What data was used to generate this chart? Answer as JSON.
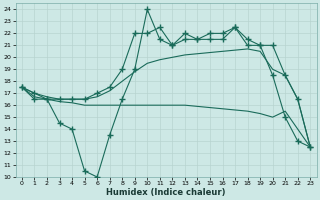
{
  "xlabel": "Humidex (Indice chaleur)",
  "bg_color": "#cde8e5",
  "line_color": "#1a6b5a",
  "grid_color": "#b8d4d0",
  "xlim": [
    -0.5,
    23.5
  ],
  "ylim": [
    10,
    24.5
  ],
  "xticks": [
    0,
    1,
    2,
    3,
    4,
    5,
    6,
    7,
    8,
    9,
    10,
    11,
    12,
    13,
    14,
    15,
    16,
    17,
    18,
    19,
    20,
    21,
    22,
    23
  ],
  "yticks": [
    10,
    11,
    12,
    13,
    14,
    15,
    16,
    17,
    18,
    19,
    20,
    21,
    22,
    23,
    24
  ],
  "line_upper_smooth_x": [
    0,
    1,
    2,
    3,
    4,
    5,
    6,
    7,
    8,
    9,
    10,
    11,
    12,
    13,
    14,
    15,
    16,
    17,
    18,
    19,
    20,
    21,
    22,
    23
  ],
  "line_upper_smooth_y": [
    17.5,
    17.0,
    16.7,
    16.5,
    16.5,
    16.5,
    16.7,
    17.2,
    18.0,
    18.8,
    19.5,
    19.8,
    20.0,
    20.2,
    20.3,
    20.4,
    20.5,
    20.6,
    20.7,
    20.5,
    19.0,
    18.5,
    16.5,
    12.5
  ],
  "line_lower_smooth_x": [
    0,
    1,
    2,
    3,
    4,
    5,
    6,
    7,
    8,
    9,
    10,
    11,
    12,
    13,
    14,
    15,
    16,
    17,
    18,
    19,
    20,
    21,
    22,
    23
  ],
  "line_lower_smooth_y": [
    17.5,
    16.7,
    16.5,
    16.3,
    16.2,
    16.0,
    16.0,
    16.0,
    16.0,
    16.0,
    16.0,
    16.0,
    16.0,
    16.0,
    15.9,
    15.8,
    15.7,
    15.6,
    15.5,
    15.3,
    15.0,
    15.5,
    14.0,
    12.5
  ],
  "line_upper_marker_x": [
    0,
    1,
    2,
    3,
    4,
    5,
    6,
    7,
    8,
    9,
    10,
    11,
    12,
    13,
    14,
    15,
    16,
    17,
    18,
    19,
    20,
    21,
    22,
    23
  ],
  "line_upper_marker_y": [
    17.5,
    17.0,
    16.5,
    16.5,
    16.5,
    16.5,
    17.0,
    17.5,
    19.0,
    22.0,
    22.0,
    22.5,
    21.0,
    21.5,
    21.5,
    21.5,
    21.5,
    22.5,
    21.5,
    21.0,
    21.0,
    18.5,
    16.5,
    12.5
  ],
  "line_lower_marker_x": [
    0,
    1,
    2,
    3,
    4,
    5,
    6,
    7,
    8,
    9,
    10,
    11,
    12,
    13,
    14,
    15,
    16,
    17,
    18,
    19,
    20,
    21,
    22,
    23
  ],
  "line_lower_marker_y": [
    17.5,
    16.5,
    16.5,
    14.5,
    14.0,
    10.5,
    10.0,
    13.5,
    16.5,
    19.0,
    24.0,
    21.5,
    21.0,
    22.0,
    21.5,
    22.0,
    22.0,
    22.5,
    21.0,
    21.0,
    18.5,
    15.0,
    13.0,
    12.5
  ]
}
